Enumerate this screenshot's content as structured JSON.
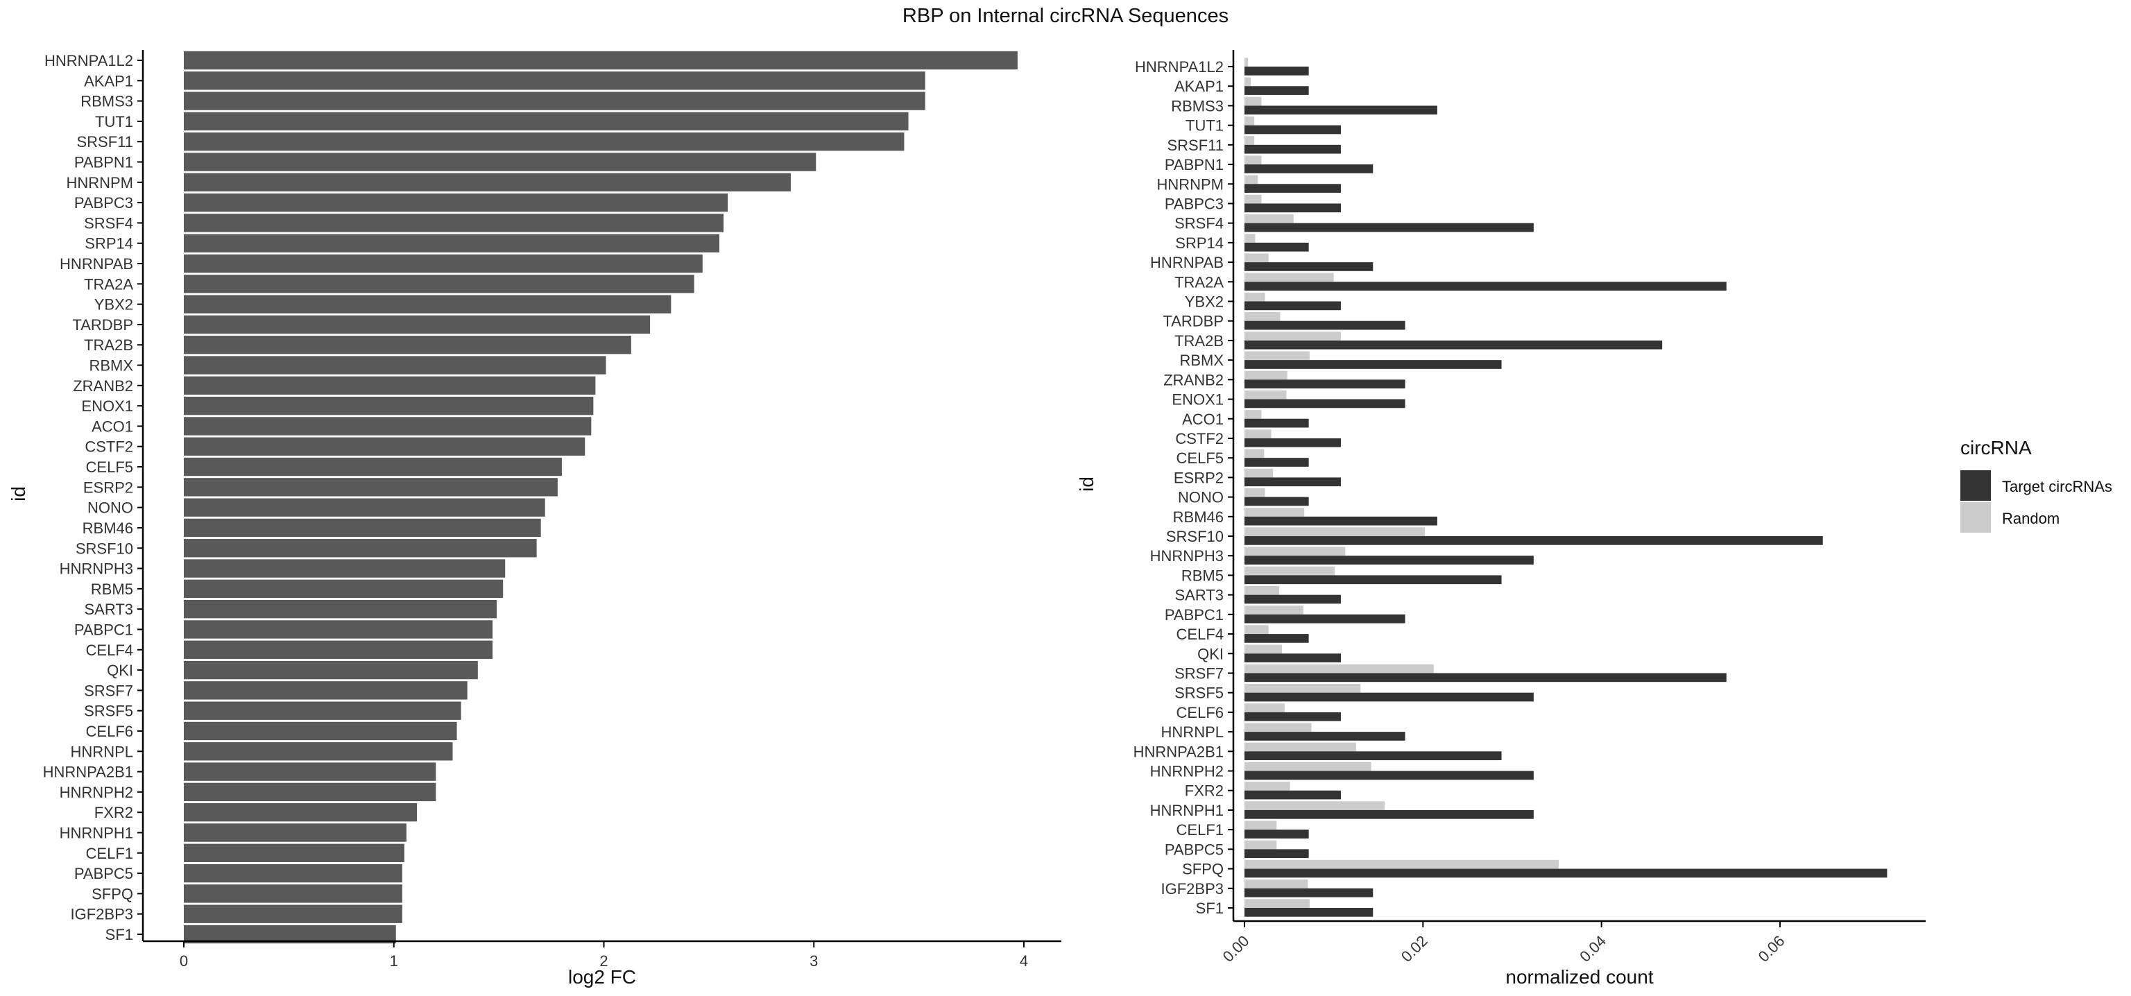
{
  "title": "RBP on Internal circRNA Sequences",
  "chart_data": [
    {
      "type": "bar",
      "orientation": "horizontal",
      "xlabel": "log2 FC",
      "ylabel": "id",
      "xlim": [
        0,
        4
      ],
      "xticks": [
        "0",
        "1",
        "2",
        "3",
        "4"
      ],
      "grid": false,
      "color": "#595959",
      "categories": [
        "HNRNPA1L2",
        "AKAP1",
        "RBMS3",
        "TUT1",
        "SRSF11",
        "PABPN1",
        "HNRNPM",
        "PABPC3",
        "SRSF4",
        "SRP14",
        "HNRNPAB",
        "TRA2A",
        "YBX2",
        "TARDBP",
        "TRA2B",
        "RBMX",
        "ZRANB2",
        "ENOX1",
        "ACO1",
        "CSTF2",
        "CELF5",
        "ESRP2",
        "NONO",
        "RBM46",
        "SRSF10",
        "HNRNPH3",
        "RBM5",
        "SART3",
        "PABPC1",
        "CELF4",
        "QKI",
        "SRSF7",
        "SRSF5",
        "CELF6",
        "HNRNPL",
        "HNRNPA2B1",
        "HNRNPH2",
        "FXR2",
        "HNRNPH1",
        "CELF1",
        "PABPC5",
        "SFPQ",
        "IGF2BP3",
        "SF1"
      ],
      "values": [
        3.97,
        3.53,
        3.53,
        3.45,
        3.43,
        3.01,
        2.89,
        2.59,
        2.57,
        2.55,
        2.47,
        2.43,
        2.32,
        2.22,
        2.13,
        2.01,
        1.96,
        1.95,
        1.94,
        1.91,
        1.8,
        1.78,
        1.72,
        1.7,
        1.68,
        1.53,
        1.52,
        1.49,
        1.47,
        1.47,
        1.4,
        1.35,
        1.32,
        1.3,
        1.28,
        1.2,
        1.2,
        1.11,
        1.06,
        1.05,
        1.04,
        1.04,
        1.04,
        1.01
      ]
    },
    {
      "type": "bar",
      "orientation": "horizontal",
      "grouped": true,
      "xlabel": "normalized count",
      "ylabel": "id",
      "xlim": [
        0,
        0.075
      ],
      "xticks": [
        "0.00",
        "0.02",
        "0.04",
        "0.06"
      ],
      "grid": false,
      "legend_title": "circRNA",
      "legend_position": "right",
      "categories": [
        "HNRNPA1L2",
        "AKAP1",
        "RBMS3",
        "TUT1",
        "SRSF11",
        "PABPN1",
        "HNRNPM",
        "PABPC3",
        "SRSF4",
        "SRP14",
        "HNRNPAB",
        "TRA2A",
        "YBX2",
        "TARDBP",
        "TRA2B",
        "RBMX",
        "ZRANB2",
        "ENOX1",
        "ACO1",
        "CSTF2",
        "CELF5",
        "ESRP2",
        "NONO",
        "RBM46",
        "SRSF10",
        "HNRNPH3",
        "RBM5",
        "SART3",
        "PABPC1",
        "CELF4",
        "QKI",
        "SRSF7",
        "SRSF5",
        "CELF6",
        "HNRNPL",
        "HNRNPA2B1",
        "HNRNPH2",
        "FXR2",
        "HNRNPH1",
        "CELF1",
        "PABPC5",
        "SFPQ",
        "IGF2BP3",
        "SF1"
      ],
      "series": [
        {
          "name": "Target circRNAs",
          "color": "#333333",
          "values": [
            0.0072,
            0.0072,
            0.0216,
            0.0108,
            0.0108,
            0.0144,
            0.0108,
            0.0108,
            0.0324,
            0.0072,
            0.0144,
            0.054,
            0.0108,
            0.018,
            0.0468,
            0.0288,
            0.018,
            0.018,
            0.0072,
            0.0108,
            0.0072,
            0.0108,
            0.0072,
            0.0216,
            0.0648,
            0.0324,
            0.0288,
            0.0108,
            0.018,
            0.0072,
            0.0108,
            0.054,
            0.0324,
            0.0108,
            0.018,
            0.0288,
            0.0324,
            0.0108,
            0.0324,
            0.0072,
            0.0072,
            0.072,
            0.0144,
            0.0144
          ]
        },
        {
          "name": "Random",
          "color": "#cccccc",
          "values": [
            0.0004,
            0.0007,
            0.0019,
            0.0011,
            0.0011,
            0.0019,
            0.0015,
            0.0019,
            0.0055,
            0.0012,
            0.0027,
            0.01,
            0.0023,
            0.004,
            0.0108,
            0.0073,
            0.0048,
            0.0047,
            0.0019,
            0.003,
            0.0022,
            0.0032,
            0.0023,
            0.0067,
            0.0202,
            0.0113,
            0.0101,
            0.0039,
            0.0066,
            0.0027,
            0.0042,
            0.0212,
            0.013,
            0.0045,
            0.0075,
            0.0125,
            0.0142,
            0.0051,
            0.0157,
            0.0036,
            0.0036,
            0.0352,
            0.0071,
            0.0073
          ]
        }
      ]
    }
  ]
}
